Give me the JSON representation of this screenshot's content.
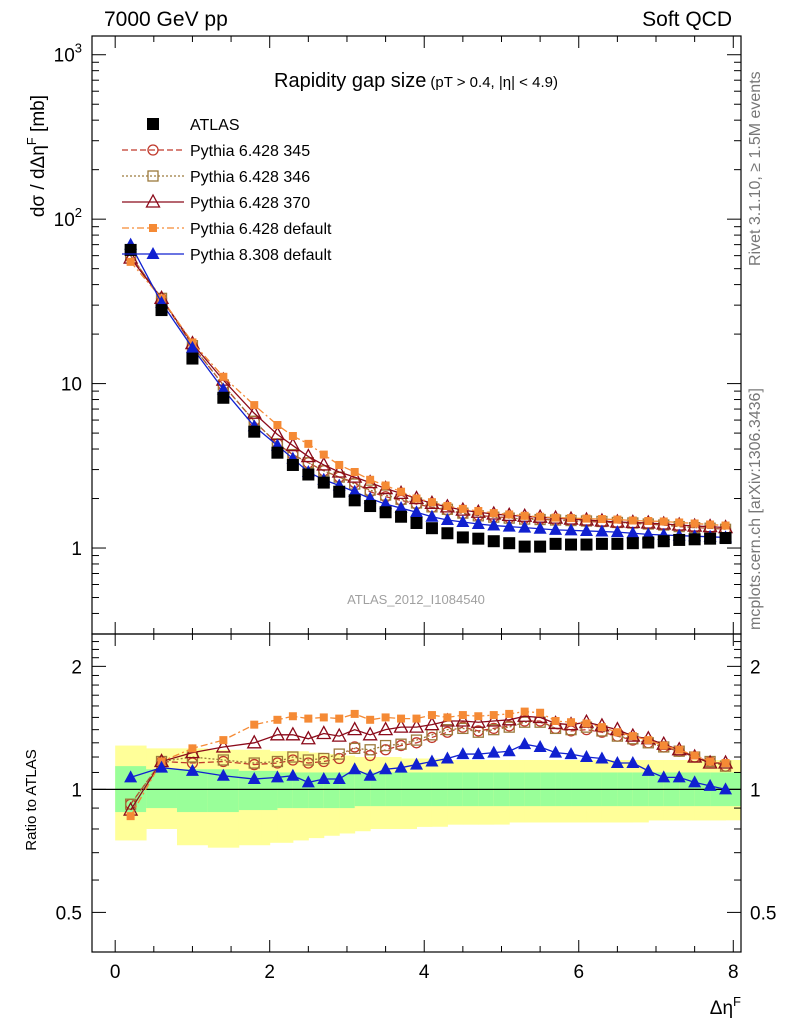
{
  "header": {
    "left": "7000 GeV pp",
    "right": "Soft QCD"
  },
  "side_labels": {
    "top": "Rivet 3.1.10, ≥ 1.5M events",
    "bottom": "mcplots.cern.ch [arXiv:1306.3436]"
  },
  "watermark": "ATLAS_2012_I1084540",
  "colors": {
    "data": "#000000",
    "p345": "#c0392b",
    "p346": "#9c7a3c",
    "p370": "#8b0a1a",
    "pdef": "#f58a35",
    "p8": "#1020d0",
    "band_inner": "#99ff99",
    "band_outer": "#ffff99"
  },
  "chart_data": [
    {
      "type": "scatter",
      "title": "Rapidity gap size",
      "title_note": "(pT > 0.4, |η| < 4.9)",
      "ylabel": "dσ / dΔη^F [mb]",
      "yscale": "log",
      "ylim": [
        0.3,
        1300
      ],
      "xlim": [
        -0.3,
        8.1
      ],
      "yticks": [
        "1",
        "10",
        "10^2",
        "10^3"
      ],
      "x": [
        0.2,
        0.6,
        1.0,
        1.4,
        1.8,
        2.1,
        2.3,
        2.5,
        2.7,
        2.9,
        3.1,
        3.3,
        3.5,
        3.7,
        3.9,
        4.1,
        4.3,
        4.5,
        4.7,
        4.9,
        5.1,
        5.3,
        5.5,
        5.7,
        5.9,
        6.1,
        6.3,
        6.5,
        6.7,
        6.9,
        7.1,
        7.3,
        7.5,
        7.7,
        7.9
      ],
      "series": [
        {
          "name": "ATLAS",
          "key": "data",
          "marker": "square-filled",
          "line": "none",
          "values": [
            65,
            28,
            14.2,
            8.2,
            5.1,
            3.8,
            3.2,
            2.8,
            2.5,
            2.2,
            1.95,
            1.8,
            1.65,
            1.55,
            1.42,
            1.32,
            1.23,
            1.16,
            1.14,
            1.1,
            1.07,
            1.02,
            1.02,
            1.06,
            1.05,
            1.05,
            1.06,
            1.06,
            1.07,
            1.08,
            1.1,
            1.12,
            1.13,
            1.14,
            1.15
          ]
        },
        {
          "name": "Pythia 6.428 345",
          "key": "p345",
          "marker": "circle-open",
          "line": "dashed",
          "values": [
            60,
            33,
            17,
            9.8,
            5.9,
            4.3,
            3.7,
            3.3,
            2.95,
            2.7,
            2.5,
            2.2,
            2.05,
            1.95,
            1.85,
            1.77,
            1.7,
            1.62,
            1.58,
            1.55,
            1.53,
            1.52,
            1.5,
            1.48,
            1.46,
            1.45,
            1.44,
            1.42,
            1.41,
            1.4,
            1.38,
            1.35,
            1.33,
            1.32,
            1.3
          ]
        },
        {
          "name": "Pythia 6.428 346",
          "key": "p346",
          "marker": "square-open",
          "line": "dotted",
          "values": [
            60,
            33,
            17,
            9.8,
            5.9,
            4.3,
            3.7,
            3.3,
            2.95,
            2.7,
            2.45,
            2.25,
            2.1,
            1.98,
            1.88,
            1.78,
            1.72,
            1.63,
            1.57,
            1.54,
            1.52,
            1.5,
            1.49,
            1.48,
            1.47,
            1.46,
            1.45,
            1.43,
            1.42,
            1.4,
            1.38,
            1.35,
            1.33,
            1.32,
            1.3
          ]
        },
        {
          "name": "Pythia 6.428 370",
          "key": "p370",
          "marker": "triangle-open",
          "line": "solid",
          "values": [
            58,
            33,
            17.5,
            10.5,
            6.6,
            4.9,
            4.2,
            3.6,
            3.2,
            2.9,
            2.7,
            2.5,
            2.3,
            2.15,
            2.0,
            1.87,
            1.78,
            1.7,
            1.65,
            1.61,
            1.58,
            1.56,
            1.54,
            1.52,
            1.5,
            1.48,
            1.46,
            1.44,
            1.43,
            1.42,
            1.4,
            1.38,
            1.36,
            1.35,
            1.33
          ]
        },
        {
          "name": "Pythia 6.428 default",
          "key": "pdef",
          "marker": "square-small-filled",
          "line": "dashdot",
          "values": [
            55,
            33,
            17.8,
            11,
            7.4,
            5.6,
            4.8,
            4.3,
            3.7,
            3.2,
            2.9,
            2.6,
            2.4,
            2.2,
            2.0,
            1.9,
            1.8,
            1.73,
            1.68,
            1.63,
            1.6,
            1.57,
            1.55,
            1.53,
            1.52,
            1.51,
            1.5,
            1.49,
            1.47,
            1.46,
            1.45,
            1.43,
            1.41,
            1.39,
            1.37
          ]
        },
        {
          "name": "Pythia 8.308 default",
          "key": "p8",
          "marker": "triangle-filled",
          "line": "solid",
          "values": [
            70,
            31,
            16.5,
            9.2,
            5.5,
            4.2,
            3.5,
            2.9,
            2.6,
            2.4,
            2.2,
            2.0,
            1.85,
            1.75,
            1.65,
            1.55,
            1.48,
            1.44,
            1.4,
            1.37,
            1.35,
            1.33,
            1.31,
            1.29,
            1.28,
            1.27,
            1.26,
            1.25,
            1.23,
            1.21,
            1.2,
            1.19,
            1.18,
            1.17,
            1.16
          ]
        }
      ]
    },
    {
      "type": "line",
      "ylabel": "Ratio to ATLAS",
      "xlabel": "Δη^F",
      "yscale": "log",
      "ylim": [
        0.4,
        2.4
      ],
      "xlim": [
        -0.3,
        8.1
      ],
      "yticks": [
        "0.5",
        "1",
        "2"
      ],
      "xticks": [
        "0",
        "2",
        "4",
        "6",
        "8"
      ],
      "reference": 1,
      "bands": {
        "x": [
          0.2,
          0.6,
          1.0,
          1.4,
          1.8,
          2.1,
          2.3,
          2.5,
          2.7,
          2.9,
          3.1,
          3.3,
          3.5,
          3.7,
          3.9,
          4.1,
          4.3,
          4.5,
          4.7,
          4.9,
          5.1,
          5.3,
          5.5,
          5.7,
          5.9,
          6.1,
          6.3,
          6.5,
          6.7,
          6.9,
          7.1,
          7.3,
          7.5,
          7.7,
          7.9
        ],
        "inner_lo": [
          0.88,
          0.9,
          0.88,
          0.88,
          0.89,
          0.89,
          0.9,
          0.9,
          0.9,
          0.9,
          0.9,
          0.91,
          0.91,
          0.91,
          0.91,
          0.91,
          0.91,
          0.91,
          0.91,
          0.91,
          0.91,
          0.91,
          0.91,
          0.91,
          0.91,
          0.91,
          0.91,
          0.91,
          0.91,
          0.91,
          0.91,
          0.91,
          0.91,
          0.91,
          0.91
        ],
        "inner_hi": [
          1.14,
          1.12,
          1.12,
          1.12,
          1.11,
          1.11,
          1.1,
          1.1,
          1.1,
          1.1,
          1.1,
          1.1,
          1.1,
          1.1,
          1.1,
          1.1,
          1.1,
          1.1,
          1.1,
          1.1,
          1.1,
          1.1,
          1.1,
          1.1,
          1.1,
          1.1,
          1.1,
          1.1,
          1.1,
          1.1,
          1.1,
          1.1,
          1.1,
          1.1,
          1.1
        ],
        "outer_lo": [
          0.75,
          0.8,
          0.73,
          0.72,
          0.73,
          0.74,
          0.75,
          0.76,
          0.77,
          0.78,
          0.79,
          0.8,
          0.8,
          0.8,
          0.81,
          0.81,
          0.82,
          0.82,
          0.82,
          0.82,
          0.83,
          0.83,
          0.83,
          0.83,
          0.83,
          0.83,
          0.83,
          0.83,
          0.83,
          0.84,
          0.84,
          0.84,
          0.84,
          0.84,
          0.84
        ],
        "outer_hi": [
          1.28,
          1.26,
          1.26,
          1.25,
          1.25,
          1.24,
          1.24,
          1.23,
          1.22,
          1.21,
          1.2,
          1.2,
          1.2,
          1.19,
          1.19,
          1.19,
          1.18,
          1.18,
          1.18,
          1.18,
          1.18,
          1.18,
          1.18,
          1.18,
          1.18,
          1.18,
          1.18,
          1.18,
          1.18,
          1.18,
          1.18,
          1.18,
          1.18,
          1.18,
          1.18
        ]
      },
      "series": [
        {
          "name": "Pythia 6.428 345",
          "key": "p345",
          "values": [
            0.92,
            1.17,
            1.16,
            1.17,
            1.15,
            1.16,
            1.18,
            1.16,
            1.17,
            1.19,
            1.27,
            1.21,
            1.25,
            1.28,
            1.3,
            1.34,
            1.38,
            1.42,
            1.39,
            1.41,
            1.43,
            1.47,
            1.47,
            1.41,
            1.39,
            1.4,
            1.38,
            1.35,
            1.32,
            1.3,
            1.27,
            1.24,
            1.2,
            1.17,
            1.14
          ]
        },
        {
          "name": "Pythia 6.428 346",
          "key": "p346",
          "values": [
            0.92,
            1.17,
            1.2,
            1.18,
            1.16,
            1.17,
            1.2,
            1.18,
            1.19,
            1.22,
            1.26,
            1.25,
            1.28,
            1.29,
            1.32,
            1.36,
            1.4,
            1.41,
            1.38,
            1.4,
            1.42,
            1.46,
            1.46,
            1.41,
            1.4,
            1.42,
            1.39,
            1.35,
            1.33,
            1.3,
            1.27,
            1.24,
            1.2,
            1.17,
            1.14
          ]
        },
        {
          "name": "Pythia 6.428 370",
          "key": "p370",
          "values": [
            0.89,
            1.17,
            1.23,
            1.27,
            1.3,
            1.36,
            1.36,
            1.33,
            1.37,
            1.35,
            1.4,
            1.36,
            1.4,
            1.42,
            1.42,
            1.44,
            1.47,
            1.47,
            1.46,
            1.47,
            1.48,
            1.51,
            1.5,
            1.45,
            1.44,
            1.46,
            1.43,
            1.4,
            1.35,
            1.33,
            1.29,
            1.25,
            1.2,
            1.16,
            1.16
          ]
        },
        {
          "name": "Pythia 6.428 default",
          "key": "pdef",
          "values": [
            0.86,
            1.17,
            1.26,
            1.32,
            1.44,
            1.48,
            1.51,
            1.49,
            1.5,
            1.49,
            1.53,
            1.48,
            1.5,
            1.49,
            1.49,
            1.52,
            1.5,
            1.52,
            1.51,
            1.52,
            1.53,
            1.55,
            1.54,
            1.47,
            1.46,
            1.45,
            1.42,
            1.38,
            1.35,
            1.32,
            1.28,
            1.25,
            1.21,
            1.17,
            1.16
          ]
        },
        {
          "name": "Pythia 8.308 default",
          "key": "p8",
          "values": [
            1.07,
            1.13,
            1.11,
            1.08,
            1.06,
            1.07,
            1.08,
            1.04,
            1.06,
            1.06,
            1.12,
            1.08,
            1.12,
            1.13,
            1.15,
            1.17,
            1.19,
            1.22,
            1.22,
            1.23,
            1.24,
            1.29,
            1.27,
            1.23,
            1.22,
            1.2,
            1.19,
            1.16,
            1.16,
            1.11,
            1.07,
            1.07,
            1.04,
            1.02,
            1.0
          ]
        }
      ]
    }
  ]
}
